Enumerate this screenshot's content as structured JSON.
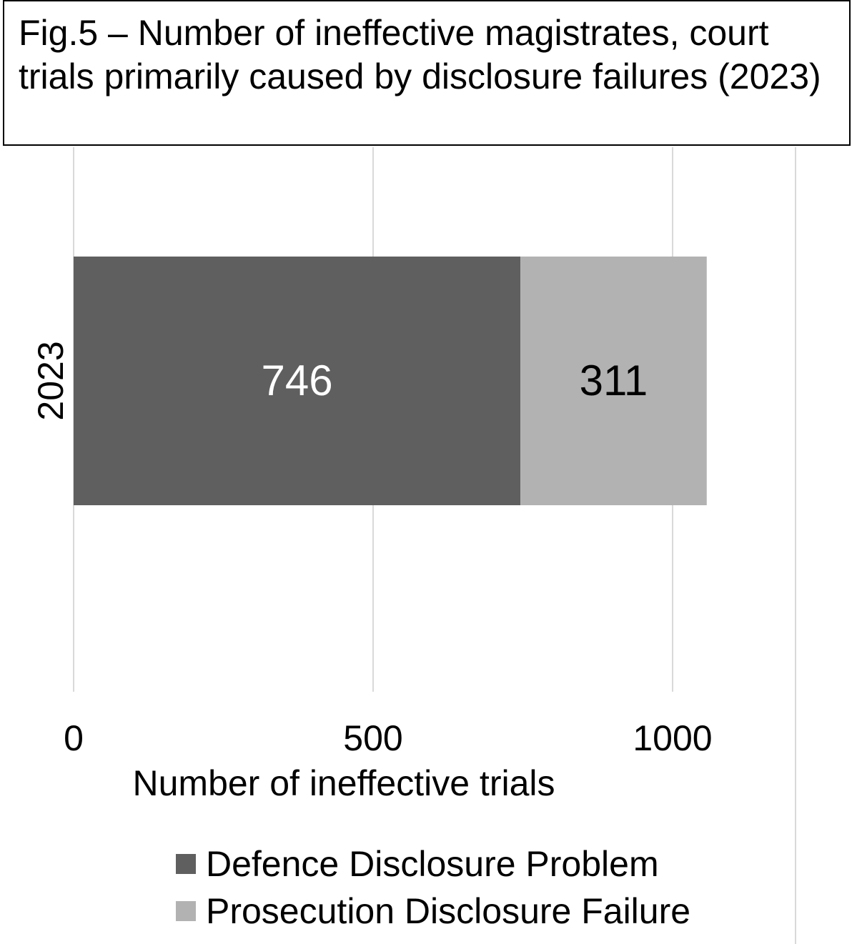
{
  "chart_data": {
    "type": "bar",
    "orientation": "horizontal",
    "stacked": true,
    "title": "Fig.5 – Number of ineffective magistrates, court trials primarily caused by disclosure failures (2023)",
    "categories": [
      "2023"
    ],
    "series": [
      {
        "name": "Defence Disclosure Problem",
        "values": [
          746
        ],
        "color": "#5f5f5f",
        "label_color": "#ffffff"
      },
      {
        "name": "Prosecution Disclosure Failure",
        "values": [
          311
        ],
        "color": "#b2b2b2",
        "label_color": "#000000"
      }
    ],
    "xlabel": "Number of ineffective trials",
    "ylabel": "",
    "xlim": [
      0,
      1200
    ],
    "xticks": [
      0,
      500,
      1000
    ],
    "grid": true,
    "legend": "bottom",
    "data_labels": true
  }
}
